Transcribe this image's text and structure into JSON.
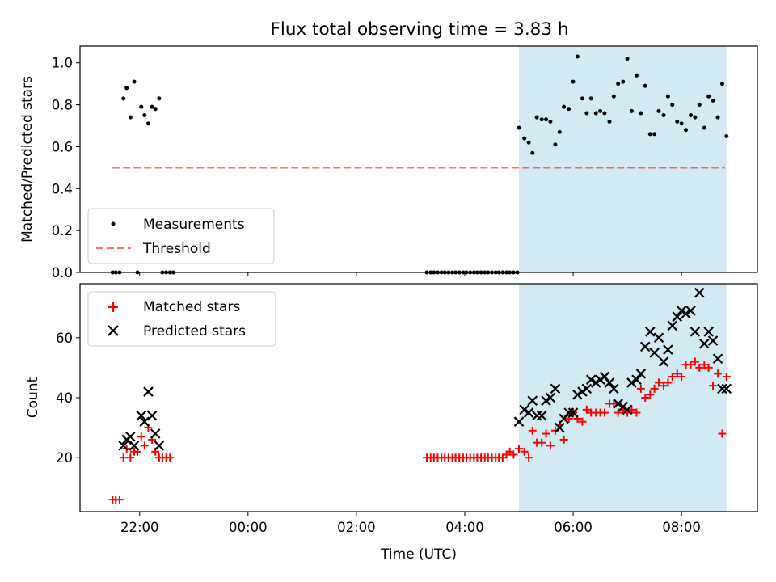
{
  "title": "Flux total observing time = 3.83 h",
  "colors": {
    "observing_span": "#add8e6",
    "measurements": "#000000",
    "threshold": "#ff0000",
    "matched": "#ff0000",
    "predicted": "#000000"
  },
  "x_axis": {
    "label": "Time (UTC)",
    "unit": "hours relative to 00:00 UTC",
    "range": [
      -3.1,
      9.4
    ],
    "ticks": [
      {
        "value": -2,
        "label": "22:00"
      },
      {
        "value": 0,
        "label": "00:00"
      },
      {
        "value": 2,
        "label": "02:00"
      },
      {
        "value": 4,
        "label": "04:00"
      },
      {
        "value": 6,
        "label": "06:00"
      },
      {
        "value": 8,
        "label": "08:00"
      }
    ]
  },
  "chart_data": [
    {
      "type": "scatter",
      "panel": "top",
      "ylabel": "Matched/Predicted stars",
      "ylim": [
        0,
        1.08
      ],
      "yticks": [
        {
          "value": 0,
          "label": "0.0"
        },
        {
          "value": 0.2,
          "label": "0.2"
        },
        {
          "value": 0.4,
          "label": "0.4"
        },
        {
          "value": 0.6,
          "label": "0.6"
        },
        {
          "value": 0.8,
          "label": "0.8"
        },
        {
          "value": 1,
          "label": "1.0"
        }
      ],
      "legend": {
        "position": "lower-left",
        "entries": [
          "Measurements",
          "Threshold"
        ]
      },
      "observing_span": [
        5.0,
        8.83
      ],
      "threshold": {
        "y": 0.5,
        "x": [
          -2.5,
          8.8
        ]
      },
      "series": [
        {
          "name": "Measurements",
          "marker": "dot",
          "x": [
            -2.5,
            -2.44,
            -2.37,
            -2.3,
            -2.24,
            -2.17,
            -2.1,
            -2.04,
            -1.97,
            -1.91,
            -1.84,
            -1.77,
            -1.71,
            -1.64,
            -1.58,
            -1.51,
            -1.44,
            -1.38,
            3.3,
            3.37,
            3.43,
            3.5,
            3.57,
            3.63,
            3.7,
            3.77,
            3.83,
            3.9,
            3.97,
            4.03,
            4.1,
            4.17,
            4.23,
            4.3,
            4.37,
            4.43,
            4.5,
            4.57,
            4.63,
            4.7,
            4.77,
            4.83,
            4.9,
            4.97,
            5.0,
            5.1,
            5.18,
            5.25,
            5.33,
            5.42,
            5.5,
            5.58,
            5.67,
            5.75,
            5.83,
            5.92,
            6.0,
            6.08,
            6.17,
            6.25,
            6.33,
            6.42,
            6.5,
            6.58,
            6.67,
            6.75,
            6.83,
            6.92,
            7.0,
            7.08,
            7.17,
            7.25,
            7.33,
            7.42,
            7.5,
            7.58,
            7.67,
            7.75,
            7.83,
            7.92,
            8.0,
            8.08,
            8.17,
            8.25,
            8.33,
            8.42,
            8.5,
            8.58,
            8.67,
            8.75,
            8.83
          ],
          "y": [
            0,
            0,
            0,
            0.83,
            0.88,
            0.74,
            0.91,
            0,
            0.79,
            0.75,
            0.71,
            0.79,
            0.78,
            0.83,
            0,
            0,
            0,
            0,
            0,
            0,
            0,
            0,
            0,
            0,
            0,
            0,
            0,
            0,
            0,
            0,
            0,
            0,
            0,
            0,
            0,
            0,
            0,
            0,
            0,
            0,
            0,
            0,
            0,
            0,
            0.69,
            0.64,
            0.62,
            0.57,
            0.74,
            0.73,
            0.73,
            0.72,
            0.61,
            0.67,
            0.79,
            0.78,
            0.91,
            1.03,
            0.83,
            0.76,
            0.83,
            0.76,
            0.77,
            0.76,
            0.72,
            0.84,
            0.9,
            0.91,
            1.02,
            0.77,
            0.94,
            0.76,
            0.89,
            0.66,
            0.66,
            0.77,
            0.75,
            0.84,
            0.8,
            0.72,
            0.71,
            0.68,
            0.75,
            0.74,
            0.8,
            0.69,
            0.84,
            0.82,
            0.74,
            0.9,
            0.65
          ]
        }
      ]
    },
    {
      "type": "scatter",
      "panel": "bottom",
      "ylabel": "Count",
      "ylim": [
        2,
        78
      ],
      "yticks": [
        {
          "value": 20,
          "label": "20"
        },
        {
          "value": 40,
          "label": "40"
        },
        {
          "value": 60,
          "label": "60"
        }
      ],
      "legend": {
        "position": "upper-left",
        "entries": [
          "Matched stars",
          "Predicted stars"
        ]
      },
      "observing_span": [
        5.0,
        8.83
      ],
      "series": [
        {
          "name": "Matched stars",
          "marker": "plus",
          "x": [
            -2.5,
            -2.44,
            -2.37,
            -2.3,
            -2.24,
            -2.17,
            -2.1,
            -2.04,
            -1.97,
            -1.91,
            -1.84,
            -1.77,
            -1.71,
            -1.64,
            -1.58,
            -1.51,
            -1.44,
            3.3,
            3.37,
            3.43,
            3.5,
            3.57,
            3.63,
            3.7,
            3.77,
            3.83,
            3.9,
            3.97,
            4.03,
            4.1,
            4.17,
            4.23,
            4.3,
            4.37,
            4.43,
            4.5,
            4.57,
            4.63,
            4.7,
            4.77,
            4.83,
            4.9,
            5.0,
            5.1,
            5.18,
            5.25,
            5.33,
            5.42,
            5.5,
            5.58,
            5.67,
            5.75,
            5.83,
            5.92,
            6.0,
            6.08,
            6.17,
            6.25,
            6.33,
            6.42,
            6.5,
            6.58,
            6.67,
            6.75,
            6.83,
            6.92,
            7.0,
            7.08,
            7.17,
            7.25,
            7.33,
            7.42,
            7.5,
            7.58,
            7.67,
            7.75,
            7.83,
            7.92,
            8.0,
            8.08,
            8.17,
            8.25,
            8.33,
            8.42,
            8.5,
            8.58,
            8.67,
            8.75,
            8.83
          ],
          "y": [
            6,
            6,
            6,
            20,
            23,
            20,
            22,
            22,
            27,
            24,
            30,
            26,
            22,
            20,
            20,
            20,
            20,
            20,
            20,
            20,
            20,
            20,
            20,
            20,
            20,
            20,
            20,
            20,
            20,
            20,
            20,
            20,
            20,
            20,
            20,
            20,
            20,
            20,
            20,
            21,
            22,
            21,
            23,
            22,
            20,
            29,
            25,
            25,
            28,
            24,
            29,
            31,
            26,
            33,
            35,
            33,
            32,
            36,
            35,
            35,
            35,
            35,
            38,
            38,
            35,
            36,
            35,
            36,
            35,
            43,
            40,
            41,
            43,
            45,
            44,
            45,
            47,
            48,
            47,
            51,
            51,
            52,
            50,
            51,
            50,
            44,
            48,
            28,
            47
          ],
          "note_hidden": ""
        },
        {
          "name": "Predicted stars",
          "marker": "x",
          "x": [
            -2.3,
            -2.24,
            -2.17,
            -2.1,
            -1.97,
            -1.91,
            -1.84,
            -1.77,
            -1.71,
            -1.64,
            5.0,
            5.1,
            5.18,
            5.25,
            5.33,
            5.42,
            5.5,
            5.58,
            5.67,
            5.75,
            5.83,
            5.92,
            6.0,
            6.08,
            6.17,
            6.25,
            6.33,
            6.42,
            6.5,
            6.58,
            6.67,
            6.75,
            6.83,
            6.92,
            7.0,
            7.08,
            7.17,
            7.25,
            7.33,
            7.42,
            7.5,
            7.58,
            7.67,
            7.75,
            7.83,
            7.92,
            8.0,
            8.08,
            8.17,
            8.25,
            8.33,
            8.42,
            8.5,
            8.58,
            8.67,
            8.75,
            8.83
          ],
          "y": [
            24,
            26,
            27,
            24,
            34,
            32,
            42,
            34,
            28,
            24,
            32,
            36,
            35,
            39,
            34,
            34,
            39,
            40,
            43,
            30,
            33,
            35,
            35,
            41,
            42,
            43,
            46,
            45,
            46,
            47,
            45,
            43,
            38,
            37,
            36,
            45,
            46,
            48,
            57,
            62,
            55,
            60,
            52,
            56,
            64,
            67,
            69,
            68,
            69,
            62,
            75,
            58,
            62,
            59,
            53,
            43,
            43
          ]
        }
      ]
    }
  ]
}
